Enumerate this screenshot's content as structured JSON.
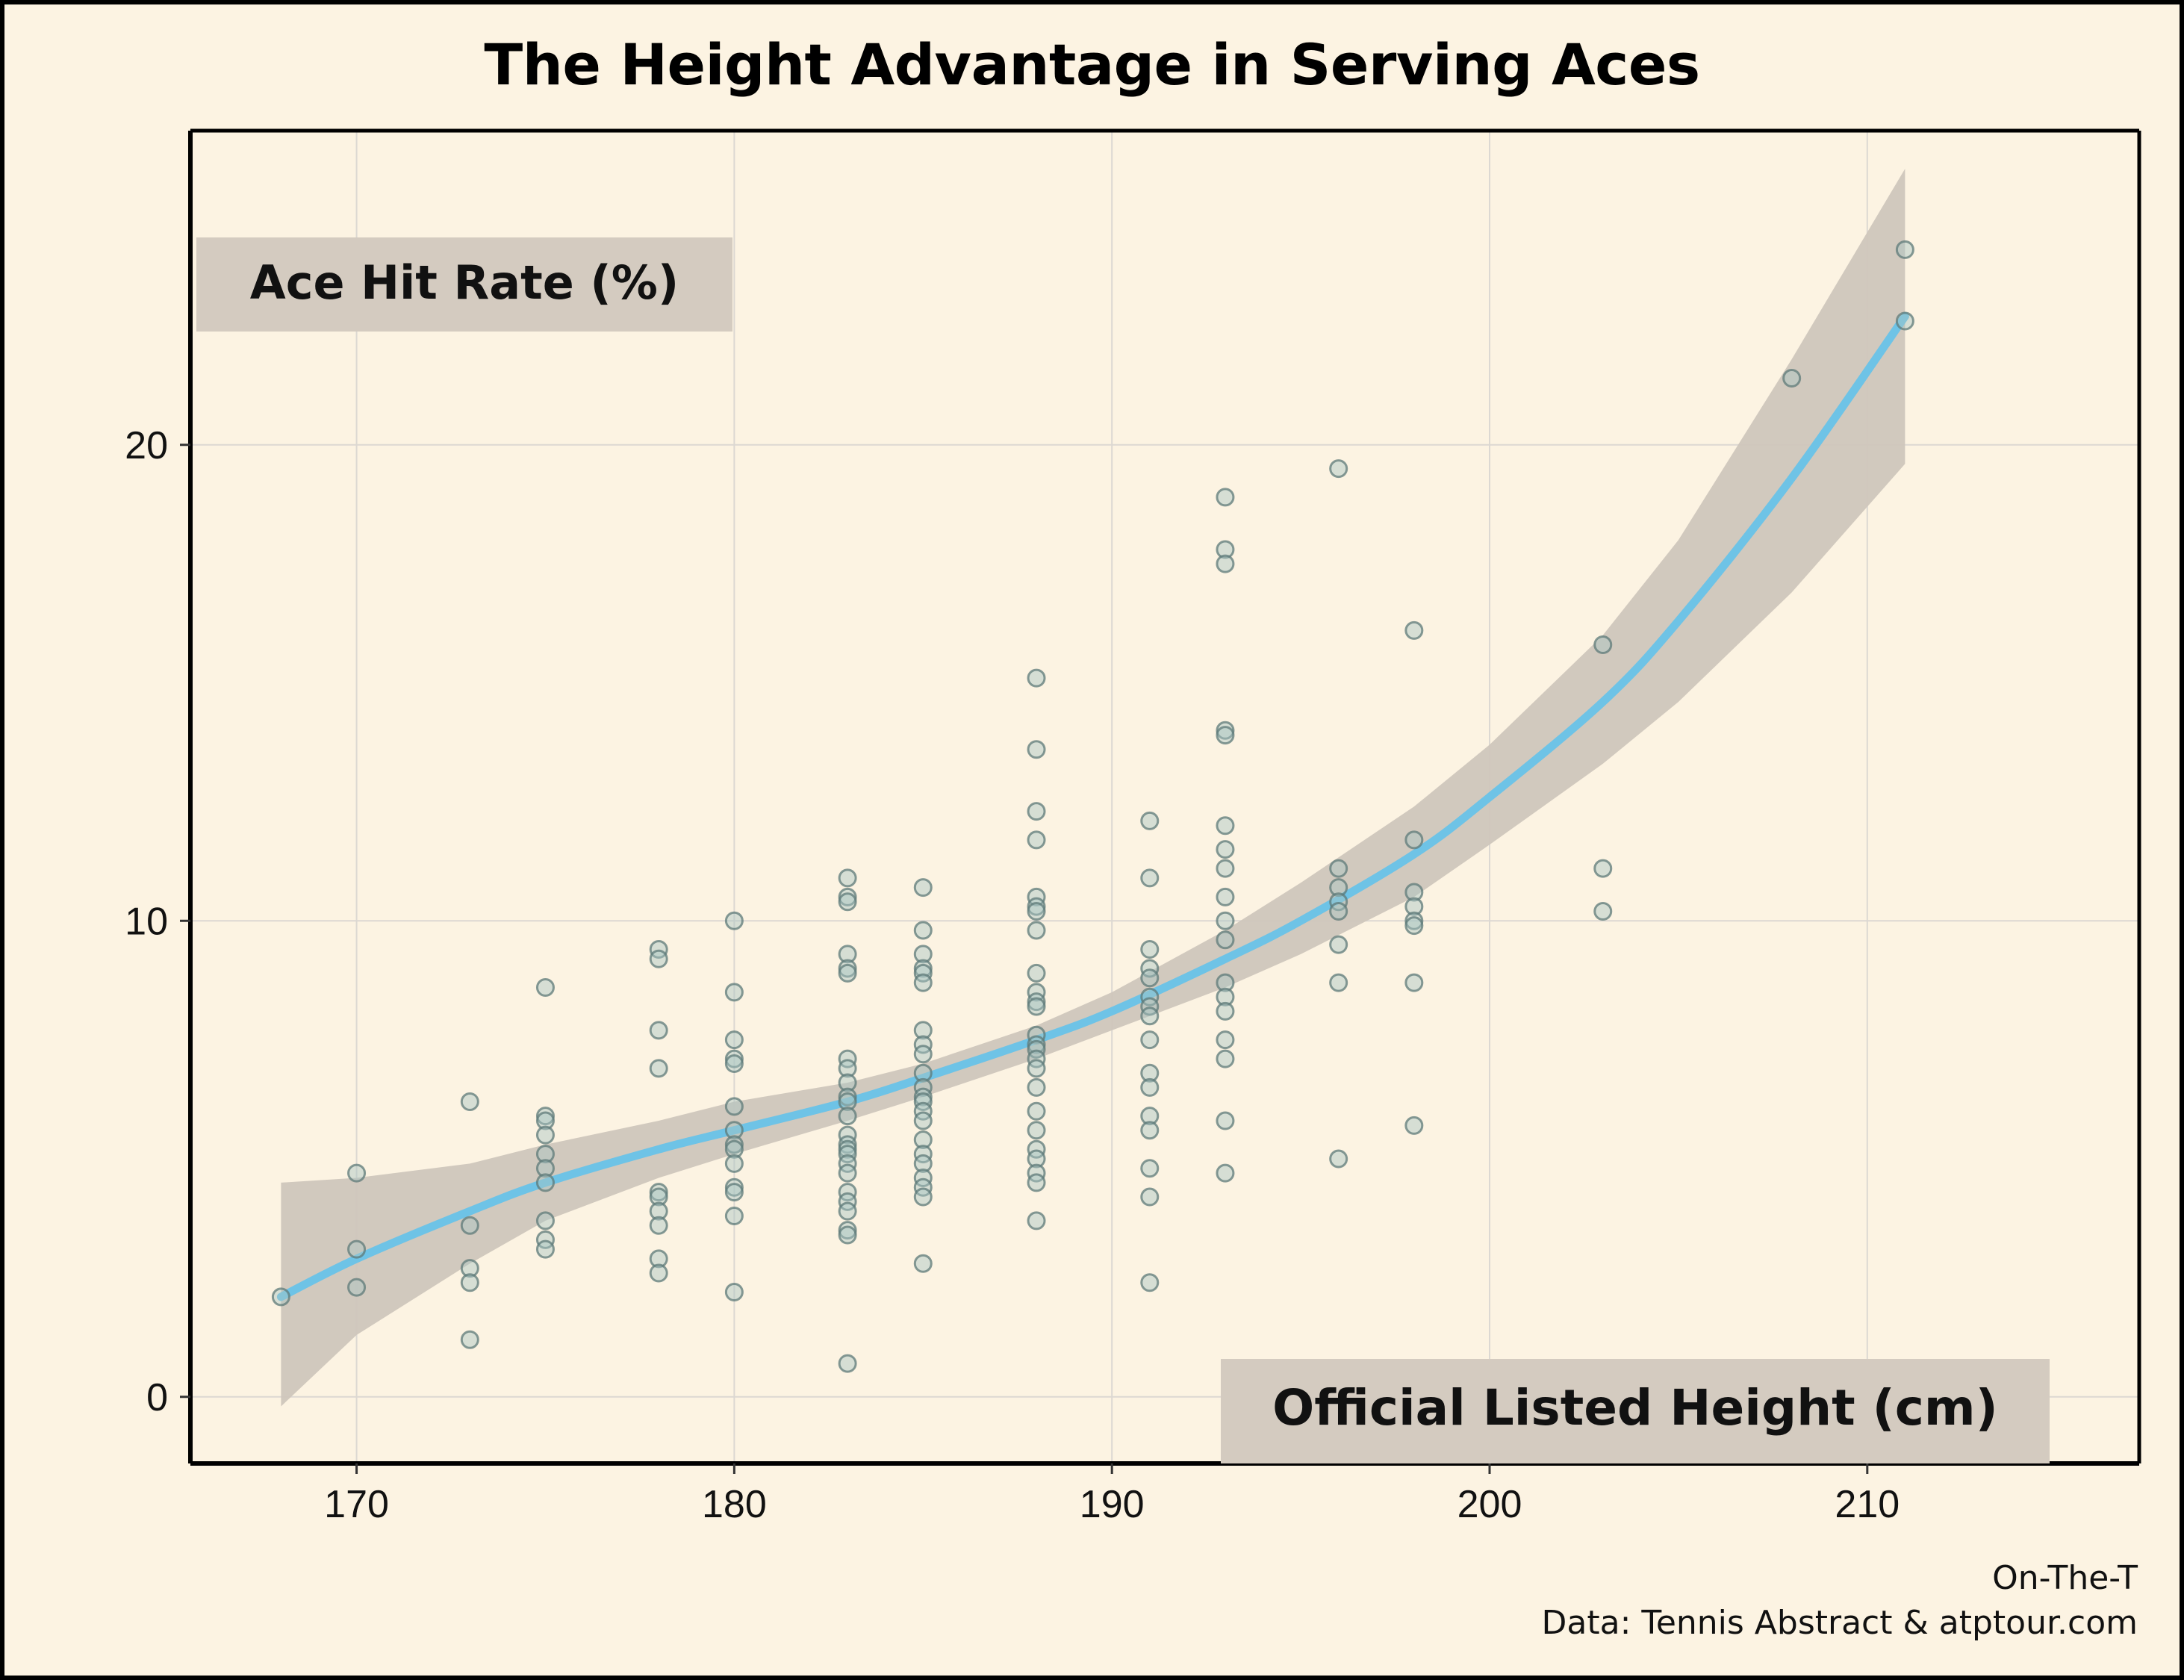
{
  "chart_data": {
    "type": "scatter",
    "title": "The Height Advantage in Serving Aces",
    "ylabel": "Ace Hit Rate (%)",
    "xlabel": "Official Listed Height (cm)",
    "xlim": [
      165.6,
      217.2
    ],
    "ylim": [
      -1.4,
      26.6
    ],
    "x_ticks": [
      170,
      180,
      190,
      200,
      210
    ],
    "y_ticks": [
      0,
      10,
      20
    ],
    "grid": true,
    "point_color": "#a9c5c4",
    "point_edge_color": "#5e7a78",
    "fit_color": "#6ec3e6",
    "band_color": "#cfc6bc",
    "points": [
      [
        168,
        2.1
      ],
      [
        170,
        4.7
      ],
      [
        170,
        3.1
      ],
      [
        170,
        2.3
      ],
      [
        173,
        6.2
      ],
      [
        173,
        3.6
      ],
      [
        173,
        2.7
      ],
      [
        173,
        2.4
      ],
      [
        173,
        1.2
      ],
      [
        175,
        8.6
      ],
      [
        175,
        5.9
      ],
      [
        175,
        5.8
      ],
      [
        175,
        5.5
      ],
      [
        175,
        5.1
      ],
      [
        175,
        4.8
      ],
      [
        175,
        4.5
      ],
      [
        175,
        3.7
      ],
      [
        175,
        3.3
      ],
      [
        175,
        3.1
      ],
      [
        178,
        9.4
      ],
      [
        178,
        9.2
      ],
      [
        178,
        7.7
      ],
      [
        178,
        6.9
      ],
      [
        178,
        4.3
      ],
      [
        178,
        4.2
      ],
      [
        178,
        3.9
      ],
      [
        178,
        3.6
      ],
      [
        178,
        2.9
      ],
      [
        178,
        2.6
      ],
      [
        180,
        10.0
      ],
      [
        180,
        8.5
      ],
      [
        180,
        7.5
      ],
      [
        180,
        7.1
      ],
      [
        180,
        7.0
      ],
      [
        180,
        6.1
      ],
      [
        180,
        5.6
      ],
      [
        180,
        5.3
      ],
      [
        180,
        5.2
      ],
      [
        180,
        4.9
      ],
      [
        180,
        4.4
      ],
      [
        180,
        4.3
      ],
      [
        180,
        3.8
      ],
      [
        180,
        2.2
      ],
      [
        183,
        10.9
      ],
      [
        183,
        10.5
      ],
      [
        183,
        10.4
      ],
      [
        183,
        9.3
      ],
      [
        183,
        9.0
      ],
      [
        183,
        8.9
      ],
      [
        183,
        7.1
      ],
      [
        183,
        6.9
      ],
      [
        183,
        6.6
      ],
      [
        183,
        6.3
      ],
      [
        183,
        6.2
      ],
      [
        183,
        5.9
      ],
      [
        183,
        5.5
      ],
      [
        183,
        5.3
      ],
      [
        183,
        5.2
      ],
      [
        183,
        5.1
      ],
      [
        183,
        4.9
      ],
      [
        183,
        4.7
      ],
      [
        183,
        4.3
      ],
      [
        183,
        4.1
      ],
      [
        183,
        3.9
      ],
      [
        183,
        3.5
      ],
      [
        183,
        3.4
      ],
      [
        183,
        0.7
      ],
      [
        185,
        10.7
      ],
      [
        185,
        9.8
      ],
      [
        185,
        9.3
      ],
      [
        185,
        9.0
      ],
      [
        185,
        8.9
      ],
      [
        185,
        8.7
      ],
      [
        185,
        7.7
      ],
      [
        185,
        7.4
      ],
      [
        185,
        7.2
      ],
      [
        185,
        6.8
      ],
      [
        185,
        6.5
      ],
      [
        185,
        6.3
      ],
      [
        185,
        6.2
      ],
      [
        185,
        6.0
      ],
      [
        185,
        5.8
      ],
      [
        185,
        5.4
      ],
      [
        185,
        5.1
      ],
      [
        185,
        4.9
      ],
      [
        185,
        4.6
      ],
      [
        185,
        4.4
      ],
      [
        185,
        4.2
      ],
      [
        185,
        2.8
      ],
      [
        188,
        15.1
      ],
      [
        188,
        13.6
      ],
      [
        188,
        12.3
      ],
      [
        188,
        11.7
      ],
      [
        188,
        10.5
      ],
      [
        188,
        10.3
      ],
      [
        188,
        10.2
      ],
      [
        188,
        9.8
      ],
      [
        188,
        8.9
      ],
      [
        188,
        8.5
      ],
      [
        188,
        8.3
      ],
      [
        188,
        8.2
      ],
      [
        188,
        7.6
      ],
      [
        188,
        7.4
      ],
      [
        188,
        7.3
      ],
      [
        188,
        7.1
      ],
      [
        188,
        6.9
      ],
      [
        188,
        6.5
      ],
      [
        188,
        6.0
      ],
      [
        188,
        5.6
      ],
      [
        188,
        5.2
      ],
      [
        188,
        5.0
      ],
      [
        188,
        4.7
      ],
      [
        188,
        4.5
      ],
      [
        188,
        3.7
      ],
      [
        191,
        12.1
      ],
      [
        191,
        10.9
      ],
      [
        191,
        9.4
      ],
      [
        191,
        9.0
      ],
      [
        191,
        8.8
      ],
      [
        191,
        8.4
      ],
      [
        191,
        8.2
      ],
      [
        191,
        8.0
      ],
      [
        191,
        7.5
      ],
      [
        191,
        6.8
      ],
      [
        191,
        6.5
      ],
      [
        191,
        5.9
      ],
      [
        191,
        5.6
      ],
      [
        191,
        4.8
      ],
      [
        191,
        4.2
      ],
      [
        191,
        2.4
      ],
      [
        193,
        18.9
      ],
      [
        193,
        17.8
      ],
      [
        193,
        17.5
      ],
      [
        193,
        14.0
      ],
      [
        193,
        13.9
      ],
      [
        193,
        12.0
      ],
      [
        193,
        11.5
      ],
      [
        193,
        11.1
      ],
      [
        193,
        10.5
      ],
      [
        193,
        10.0
      ],
      [
        193,
        9.6
      ],
      [
        193,
        8.7
      ],
      [
        193,
        8.4
      ],
      [
        193,
        8.1
      ],
      [
        193,
        7.5
      ],
      [
        193,
        7.1
      ],
      [
        193,
        5.8
      ],
      [
        193,
        4.7
      ],
      [
        196,
        19.5
      ],
      [
        196,
        11.1
      ],
      [
        196,
        10.7
      ],
      [
        196,
        10.4
      ],
      [
        196,
        10.2
      ],
      [
        196,
        9.5
      ],
      [
        196,
        8.7
      ],
      [
        196,
        5.0
      ],
      [
        198,
        16.1
      ],
      [
        198,
        11.7
      ],
      [
        198,
        10.6
      ],
      [
        198,
        10.3
      ],
      [
        198,
        10.0
      ],
      [
        198,
        9.9
      ],
      [
        198,
        8.7
      ],
      [
        198,
        5.7
      ],
      [
        203,
        15.8
      ],
      [
        203,
        11.1
      ],
      [
        203,
        10.2
      ],
      [
        208,
        21.4
      ],
      [
        211,
        24.1
      ],
      [
        211,
        22.6
      ]
    ],
    "fit_line": [
      [
        168,
        2.1
      ],
      [
        170,
        2.9
      ],
      [
        173,
        3.9
      ],
      [
        175,
        4.5
      ],
      [
        178,
        5.2
      ],
      [
        180,
        5.6
      ],
      [
        183,
        6.2
      ],
      [
        185,
        6.7
      ],
      [
        188,
        7.5
      ],
      [
        190,
        8.1
      ],
      [
        193,
        9.2
      ],
      [
        195,
        10.0
      ],
      [
        198,
        11.4
      ],
      [
        200,
        12.6
      ],
      [
        203,
        14.6
      ],
      [
        205,
        16.3
      ],
      [
        208,
        19.3
      ],
      [
        211,
        22.7
      ]
    ],
    "band_upper": [
      [
        168,
        4.5
      ],
      [
        170,
        4.6
      ],
      [
        173,
        4.9
      ],
      [
        175,
        5.3
      ],
      [
        178,
        5.8
      ],
      [
        180,
        6.2
      ],
      [
        183,
        6.6
      ],
      [
        185,
        7.0
      ],
      [
        188,
        7.8
      ],
      [
        190,
        8.5
      ],
      [
        193,
        9.8
      ],
      [
        195,
        10.8
      ],
      [
        198,
        12.4
      ],
      [
        200,
        13.7
      ],
      [
        203,
        16.0
      ],
      [
        205,
        18.0
      ],
      [
        208,
        21.8
      ],
      [
        211,
        25.8
      ]
    ],
    "band_lower": [
      [
        168,
        -0.2
      ],
      [
        170,
        1.3
      ],
      [
        173,
        2.8
      ],
      [
        175,
        3.7
      ],
      [
        178,
        4.6
      ],
      [
        180,
        5.1
      ],
      [
        183,
        5.8
      ],
      [
        185,
        6.3
      ],
      [
        188,
        7.1
      ],
      [
        190,
        7.7
      ],
      [
        193,
        8.6
      ],
      [
        195,
        9.3
      ],
      [
        198,
        10.5
      ],
      [
        200,
        11.6
      ],
      [
        203,
        13.3
      ],
      [
        205,
        14.6
      ],
      [
        208,
        16.9
      ],
      [
        211,
        19.6
      ]
    ]
  },
  "caption": {
    "brand": "On-The-T",
    "source": "Data: Tennis Abstract & atptour.com"
  }
}
